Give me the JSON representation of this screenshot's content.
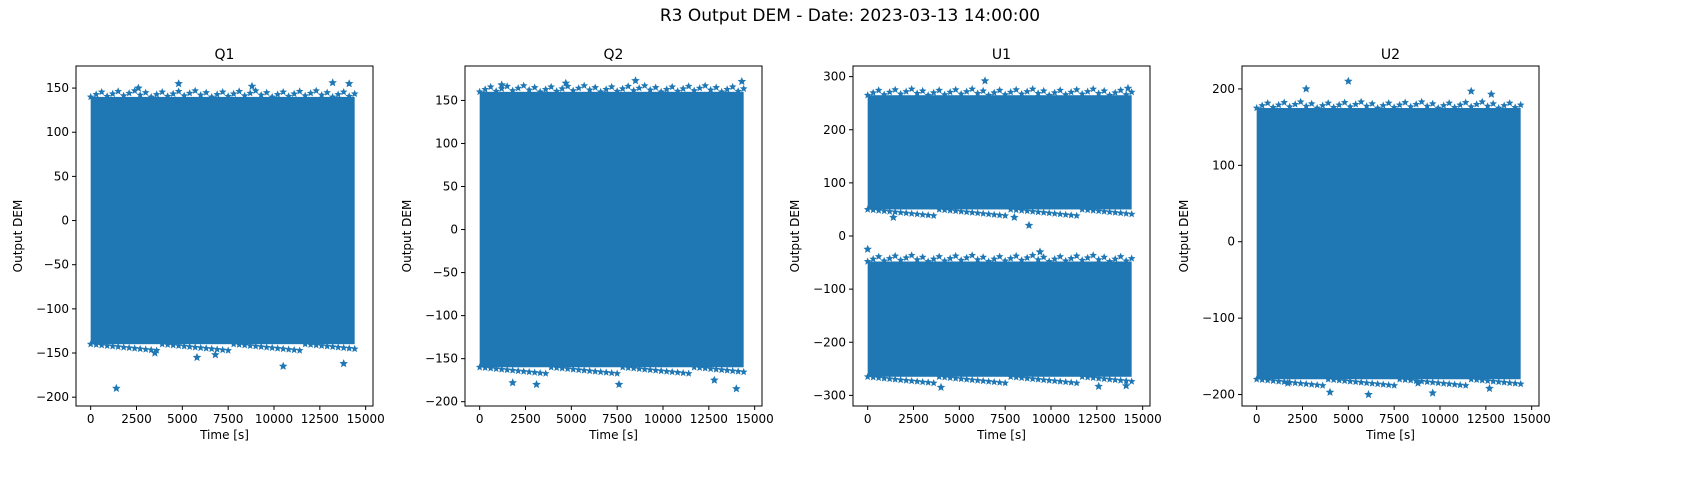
{
  "figure": {
    "suptitle": "R3 Output DEM - Date: 2023-03-13 14:00:00",
    "marker_color": "#1f77b4"
  },
  "chart_data": [
    {
      "type": "scatter",
      "title": "Q1",
      "xlabel": "Time [s]",
      "ylabel": "Output DEM",
      "xlim": [
        -800,
        15400
      ],
      "ylim": [
        -210,
        175
      ],
      "xticks": [
        0,
        2500,
        5000,
        7500,
        10000,
        12500,
        15000
      ],
      "yticks": [
        -200,
        -150,
        -100,
        -50,
        0,
        50,
        100,
        150
      ],
      "marker": "star",
      "x_range": [
        0,
        14400
      ],
      "bands": [
        {
          "low": -140,
          "high": 140
        }
      ],
      "outliers": [
        {
          "x": 1400,
          "y": -190
        },
        {
          "x": 3500,
          "y": -150
        },
        {
          "x": 5800,
          "y": -155
        },
        {
          "x": 6800,
          "y": -152
        },
        {
          "x": 10500,
          "y": -165
        },
        {
          "x": 13800,
          "y": -162
        },
        {
          "x": 4800,
          "y": 155
        },
        {
          "x": 13200,
          "y": 156
        },
        {
          "x": 14100,
          "y": 155
        },
        {
          "x": 2600,
          "y": 150
        },
        {
          "x": 8800,
          "y": 152
        }
      ]
    },
    {
      "type": "scatter",
      "title": "Q2",
      "xlabel": "Time [s]",
      "ylabel": "Output DEM",
      "xlim": [
        -800,
        15400
      ],
      "ylim": [
        -205,
        190
      ],
      "xticks": [
        0,
        2500,
        5000,
        7500,
        10000,
        12500,
        15000
      ],
      "yticks": [
        -200,
        -150,
        -100,
        -50,
        0,
        50,
        100,
        150
      ],
      "marker": "star",
      "x_range": [
        0,
        14400
      ],
      "bands": [
        {
          "low": -160,
          "high": 160
        }
      ],
      "outliers": [
        {
          "x": 1800,
          "y": -178
        },
        {
          "x": 3100,
          "y": -180
        },
        {
          "x": 7600,
          "y": -180
        },
        {
          "x": 12800,
          "y": -175
        },
        {
          "x": 14000,
          "y": -185
        },
        {
          "x": 8500,
          "y": 173
        },
        {
          "x": 4700,
          "y": 170
        },
        {
          "x": 14300,
          "y": 172
        },
        {
          "x": 1200,
          "y": 168
        }
      ]
    },
    {
      "type": "scatter",
      "title": "U1",
      "xlabel": "Time [s]",
      "ylabel": "Output DEM",
      "xlim": [
        -800,
        15400
      ],
      "ylim": [
        -320,
        320
      ],
      "xticks": [
        0,
        2500,
        5000,
        7500,
        10000,
        12500,
        15000
      ],
      "yticks": [
        -300,
        -200,
        -100,
        0,
        100,
        200,
        300
      ],
      "marker": "star",
      "x_range": [
        0,
        14400
      ],
      "bands": [
        {
          "low": 50,
          "high": 265
        },
        {
          "low": -265,
          "high": -48
        }
      ],
      "outliers": [
        {
          "x": 6400,
          "y": 292
        },
        {
          "x": 8800,
          "y": 20
        },
        {
          "x": 0,
          "y": -25
        },
        {
          "x": 9400,
          "y": -30
        },
        {
          "x": 4000,
          "y": -285
        },
        {
          "x": 12600,
          "y": -283
        },
        {
          "x": 14100,
          "y": -282
        },
        {
          "x": 14200,
          "y": 278
        },
        {
          "x": 1400,
          "y": 35
        },
        {
          "x": 8000,
          "y": 35
        }
      ]
    },
    {
      "type": "scatter",
      "title": "U2",
      "xlabel": "Time [s]",
      "ylabel": "Output DEM",
      "xlim": [
        -800,
        15400
      ],
      "ylim": [
        -215,
        230
      ],
      "xticks": [
        0,
        2500,
        5000,
        7500,
        10000,
        12500,
        15000
      ],
      "yticks": [
        -200,
        -100,
        0,
        100,
        200
      ],
      "marker": "star",
      "x_range": [
        0,
        14400
      ],
      "bands": [
        {
          "low": -180,
          "high": 175
        }
      ],
      "outliers": [
        {
          "x": 5000,
          "y": 210
        },
        {
          "x": 2700,
          "y": 200
        },
        {
          "x": 11700,
          "y": 197
        },
        {
          "x": 12800,
          "y": 193
        },
        {
          "x": 4000,
          "y": -197
        },
        {
          "x": 6100,
          "y": -200
        },
        {
          "x": 9600,
          "y": -198
        },
        {
          "x": 12700,
          "y": -192
        },
        {
          "x": 1700,
          "y": -185
        },
        {
          "x": 8800,
          "y": -185
        }
      ]
    }
  ]
}
